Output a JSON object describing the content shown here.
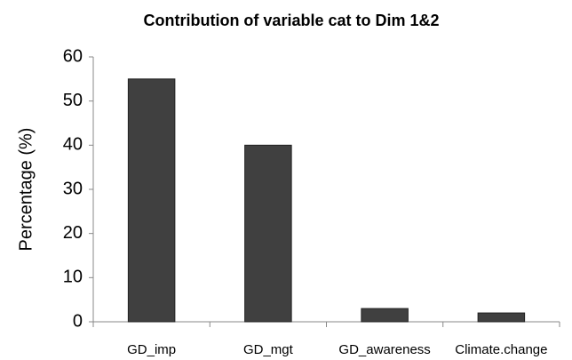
{
  "chart_data": {
    "type": "bar",
    "title": "Contribution of variable cat to Dim 1&2",
    "y_label": "Percentage (%)",
    "categories": [
      "GD_imp",
      "GD_mgt",
      "GD_awareness",
      "Climate.change"
    ],
    "values": [
      55,
      40,
      3,
      2
    ],
    "color": "#404040",
    "ylim": [
      0,
      60
    ],
    "yticks": [
      0,
      10,
      20,
      30,
      40,
      50,
      60
    ],
    "grid": false
  }
}
